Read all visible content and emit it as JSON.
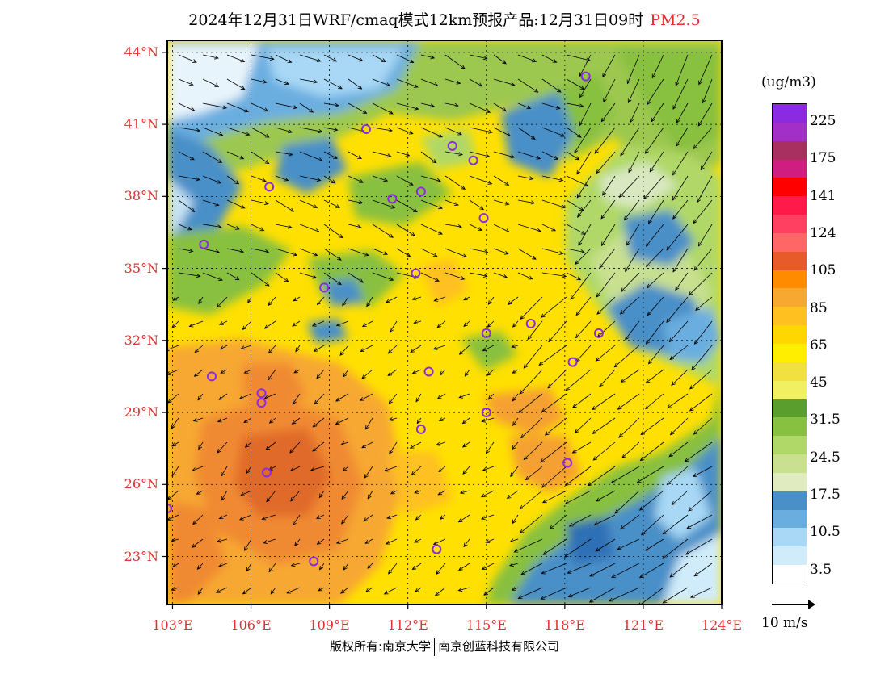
{
  "title": {
    "main": "2024年12月31日WRF/cmaq模式12km预报产品:12月31日09时",
    "variable": "PM2.5"
  },
  "map": {
    "lat_labels": [
      "44°N",
      "41°N",
      "38°N",
      "35°N",
      "32°N",
      "29°N",
      "26°N",
      "23°N"
    ],
    "lon_labels": [
      "103°E",
      "106°E",
      "109°E",
      "112°E",
      "115°E",
      "118°E",
      "121°E",
      "124°E"
    ],
    "lat_values": [
      44,
      41,
      38,
      35,
      32,
      29,
      26,
      23
    ],
    "lon_values": [
      103,
      106,
      109,
      112,
      115,
      118,
      121,
      124
    ],
    "lat_range": [
      21,
      44.5
    ],
    "lon_range": [
      102.8,
      124
    ]
  },
  "legend": {
    "unit": "(ug/m3)",
    "labels": [
      "225",
      "175",
      "141",
      "124",
      "105",
      "85",
      "65",
      "45",
      "31.5",
      "24.5",
      "17.5",
      "10.5",
      "3.5"
    ],
    "colors": [
      "#8a2be2",
      "#a22fc8",
      "#a83060",
      "#d01e80",
      "#ff0000",
      "#ff1a4a",
      "#ff4060",
      "#ff6666",
      "#e85a2a",
      "#ff8c00",
      "#f7a830",
      "#ffc020",
      "#ffd700",
      "#ffee00",
      "#f0e040",
      "#f0f060",
      "#5a9e2e",
      "#88c040",
      "#b0d868",
      "#c8e090",
      "#e0ecc0",
      "#4a8fc8",
      "#6aaee0",
      "#a8d8f5",
      "#d0ecfa",
      "#ffffff"
    ]
  },
  "wind_key": {
    "label": "10 m/s"
  },
  "cities": [
    {
      "lon": 118.8,
      "lat": 43.0
    },
    {
      "lon": 110.4,
      "lat": 40.8
    },
    {
      "lon": 113.7,
      "lat": 40.1
    },
    {
      "lon": 114.5,
      "lat": 39.5
    },
    {
      "lon": 106.7,
      "lat": 38.4
    },
    {
      "lon": 111.4,
      "lat": 37.9
    },
    {
      "lon": 112.5,
      "lat": 38.2
    },
    {
      "lon": 114.9,
      "lat": 37.1
    },
    {
      "lon": 104.2,
      "lat": 36.0
    },
    {
      "lon": 112.3,
      "lat": 34.8
    },
    {
      "lon": 108.8,
      "lat": 34.2
    },
    {
      "lon": 115.0,
      "lat": 32.3
    },
    {
      "lon": 116.7,
      "lat": 32.7
    },
    {
      "lon": 119.3,
      "lat": 32.3
    },
    {
      "lon": 118.3,
      "lat": 31.1
    },
    {
      "lon": 104.5,
      "lat": 30.5
    },
    {
      "lon": 112.8,
      "lat": 30.7
    },
    {
      "lon": 106.4,
      "lat": 29.8
    },
    {
      "lon": 106.4,
      "lat": 29.4
    },
    {
      "lon": 115.0,
      "lat": 29.0
    },
    {
      "lon": 112.5,
      "lat": 28.3
    },
    {
      "lon": 106.6,
      "lat": 26.5
    },
    {
      "lon": 118.1,
      "lat": 26.9
    },
    {
      "lon": 102.8,
      "lat": 25.0
    },
    {
      "lon": 113.1,
      "lat": 23.3
    },
    {
      "lon": 108.4,
      "lat": 22.8
    }
  ],
  "credit": {
    "left": "版权所有:南京大学",
    "right": "南京创蓝科技有限公司"
  }
}
